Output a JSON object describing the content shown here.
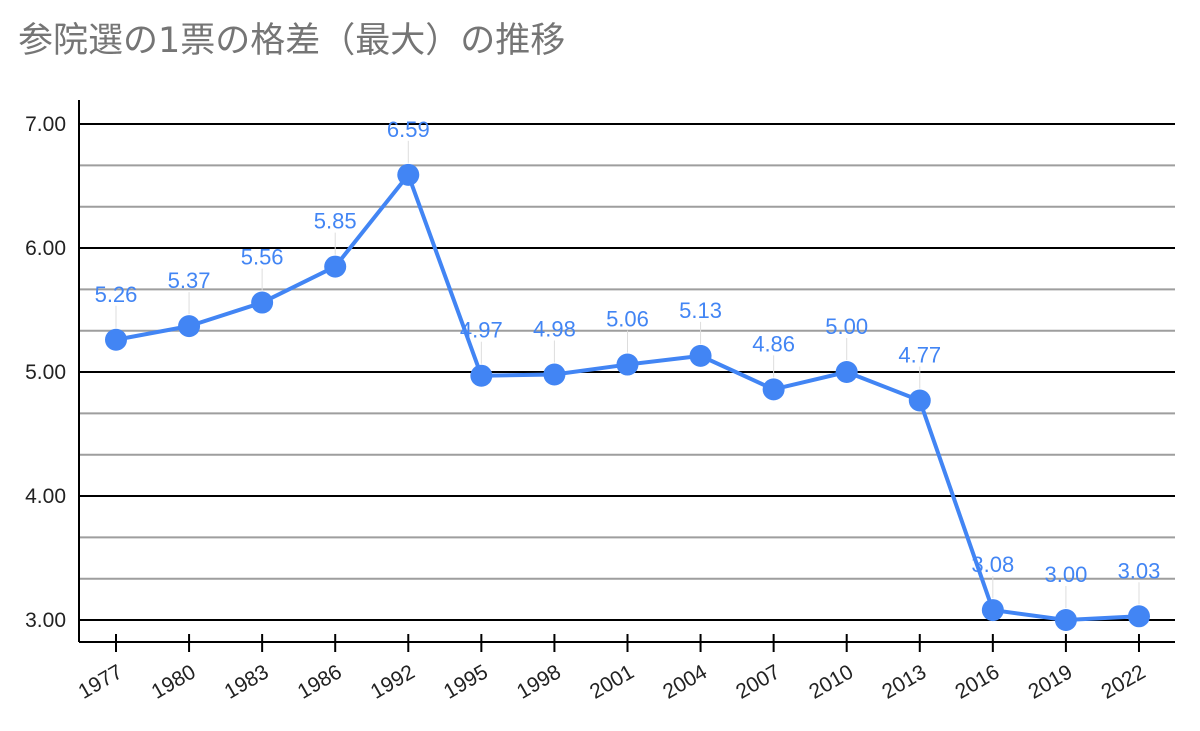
{
  "chart_data": {
    "type": "line",
    "title": "参院選の1票の格差（最大）の推移",
    "xlabel": "",
    "ylabel": "",
    "categories": [
      "1977",
      "1980",
      "1983",
      "1986",
      "1992",
      "1995",
      "1998",
      "2001",
      "2004",
      "2007",
      "2010",
      "2013",
      "2016",
      "2019",
      "2022"
    ],
    "series": [
      {
        "values": [
          5.26,
          5.37,
          5.56,
          5.85,
          6.59,
          4.97,
          4.98,
          5.06,
          5.13,
          4.86,
          5.0,
          4.77,
          3.08,
          3.0,
          3.03
        ]
      }
    ],
    "data_labels": [
      "5.26",
      "5.37",
      "5.56",
      "5.85",
      "6.59",
      "4.97",
      "4.98",
      "5.06",
      "5.13",
      "4.86",
      "5.00",
      "4.77",
      "3.08",
      "3.00",
      "3.03"
    ],
    "ylim": [
      3.0,
      7.0
    ],
    "y_ticks": [
      3,
      4,
      5,
      6,
      7
    ],
    "y_tick_labels": [
      "3.00",
      "4.00",
      "5.00",
      "6.00",
      "7.00"
    ],
    "minor_grid_step": 0.333,
    "grid": true,
    "legend": "none",
    "colors": {
      "line": "#4285f4",
      "label": "#4285f4",
      "major_grid": "#000000",
      "minor_grid": "#9e9e9e",
      "title": "#757575"
    }
  }
}
